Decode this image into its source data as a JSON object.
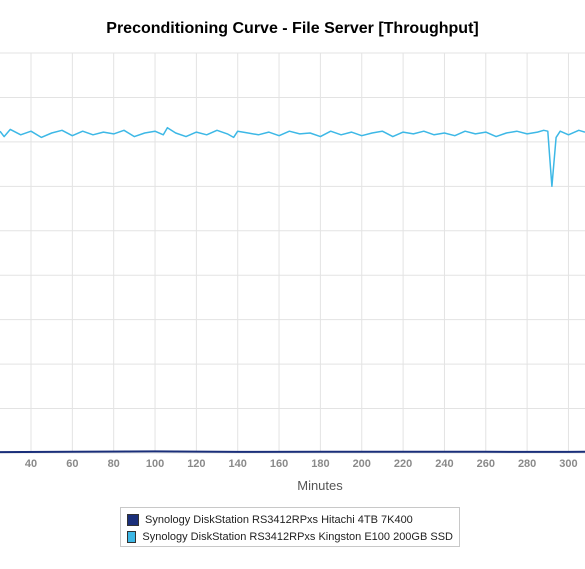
{
  "chart_data": {
    "type": "line",
    "title": "Preconditioning Curve - File Server [Throughput]",
    "xlabel": "Minutes",
    "ylabel": "",
    "xlim": [
      25,
      308
    ],
    "ylim": [
      0,
      450
    ],
    "x_ticks": [
      40,
      60,
      80,
      100,
      120,
      140,
      160,
      180,
      200,
      220,
      240,
      260,
      280,
      300
    ],
    "grid": true,
    "legend_position": "bottom",
    "series": [
      {
        "name": "Synology DiskStation RS3412RPxs Hitachi 4TB 7K400",
        "color": "#1a2f7a",
        "x": [
          25,
          60,
          100,
          140,
          180,
          220,
          260,
          300,
          308
        ],
        "y": [
          1,
          1.5,
          1.8,
          1.2,
          1.5,
          1.3,
          1.4,
          1.2,
          1.3
        ]
      },
      {
        "name": "Synology DiskStation RS3412RPxs Kingston E100 200GB SSD",
        "color": "#3db8e6",
        "x": [
          25,
          27,
          30,
          35,
          40,
          45,
          50,
          55,
          60,
          65,
          70,
          75,
          80,
          85,
          90,
          95,
          100,
          104,
          106,
          110,
          115,
          120,
          125,
          130,
          135,
          138,
          140,
          145,
          150,
          155,
          160,
          165,
          170,
          175,
          180,
          185,
          190,
          195,
          200,
          205,
          210,
          215,
          220,
          225,
          230,
          235,
          240,
          245,
          250,
          255,
          260,
          265,
          270,
          275,
          280,
          285,
          288,
          290,
          291,
          292,
          294,
          296,
          300,
          305,
          308
        ],
        "y": [
          362,
          356,
          364,
          358,
          362,
          355,
          360,
          363,
          357,
          362,
          358,
          361,
          359,
          363,
          356,
          360,
          362,
          358,
          366,
          360,
          356,
          361,
          358,
          363,
          359,
          355,
          362,
          360,
          358,
          361,
          357,
          362,
          359,
          360,
          356,
          362,
          358,
          361,
          357,
          360,
          362,
          356,
          361,
          359,
          362,
          358,
          360,
          357,
          362,
          359,
          361,
          356,
          360,
          362,
          359,
          361,
          363,
          362,
          330,
          300,
          355,
          362,
          358,
          363,
          361
        ]
      }
    ]
  }
}
